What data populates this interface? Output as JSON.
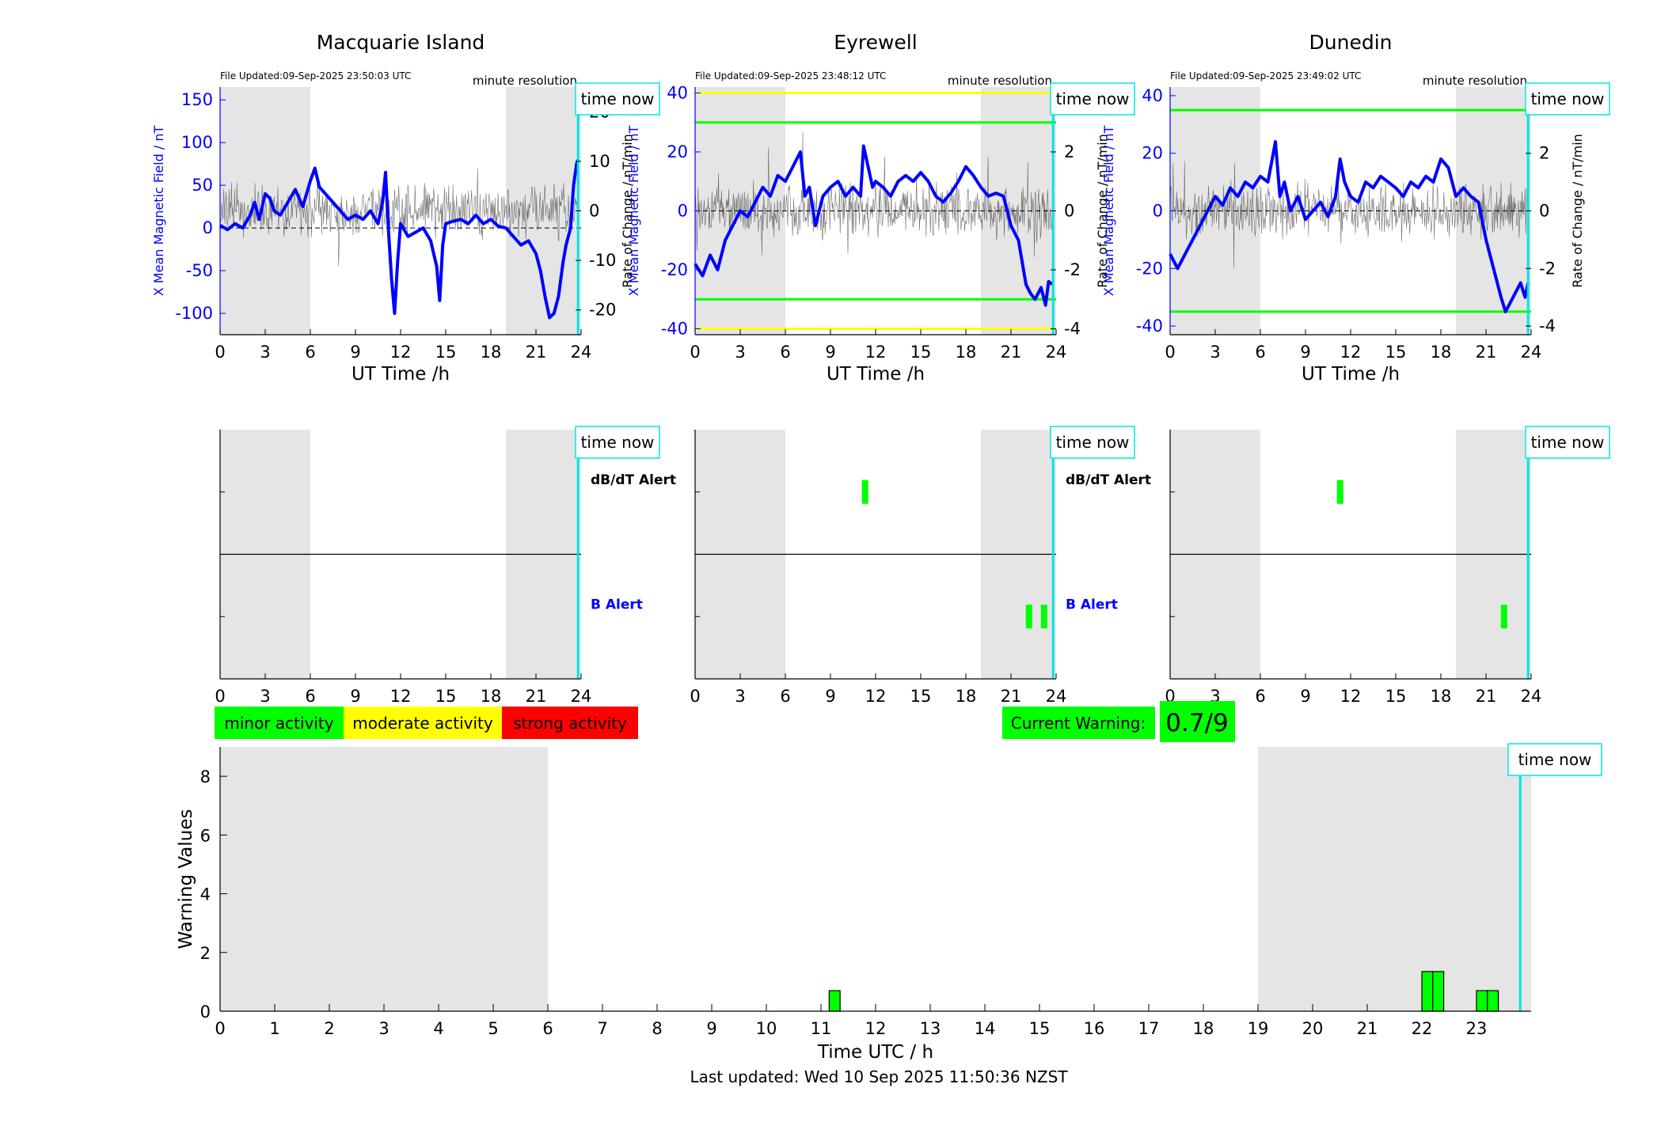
{
  "colors": {
    "night_shade": "#e5e5e5",
    "mean_field": "#0000ff",
    "rate_of_change": "#333333",
    "time_now": "#00e5e5",
    "minor": "#00ff00",
    "moderate": "#ffff00",
    "strong": "#ff0000"
  },
  "labels": {
    "time_now": "time now",
    "minute_resolution": "minute resolution",
    "ut_time": "UT Time /h",
    "x_field": "X Mean Magnetic Field / nT",
    "rate": "Rate of Change / nT/min",
    "dbdt_alert": "dB/dT Alert",
    "b_alert": "B Alert",
    "warning_values": "Warning Values",
    "time_utc": "Time UTC / h",
    "current_warning": "Current Warning:",
    "current_warning_value": "0.7/9",
    "last_updated": "Last updated: Wed 10 Sep 2025 11:50:36 NZST"
  },
  "legend": [
    {
      "label": "minor activity",
      "color": "#00ff00"
    },
    {
      "label": "moderate activity",
      "color": "#ffff00"
    },
    {
      "label": "strong activity",
      "color": "#ff0000"
    }
  ],
  "chart_data": [
    {
      "type": "line",
      "title": "Macquarie Island",
      "file_updated": "File Updated:09-Sep-2025 23:50:03 UTC",
      "xlabel": "UT Time /h",
      "ylabel": "X Mean Magnetic Field / nT",
      "ylabel_right": "Rate of Change / nT/min",
      "xlim": [
        0,
        24
      ],
      "xticks": [
        0,
        3,
        6,
        9,
        12,
        15,
        18,
        21,
        24
      ],
      "ylim": [
        -125,
        165
      ],
      "yticks": [
        -100,
        -50,
        0,
        50,
        100,
        150
      ],
      "ylim_right": [
        -25,
        25
      ],
      "yticks_right": [
        -20,
        -10,
        0,
        10,
        20
      ],
      "night_shade": [
        [
          0,
          6
        ],
        [
          19,
          24
        ]
      ],
      "time_now": 23.8,
      "threshold_lines": [],
      "series": [
        {
          "x": [
            0,
            0.5,
            1,
            1.5,
            2,
            2.3,
            2.6,
            3,
            3.3,
            3.6,
            4,
            4.5,
            5,
            5.5,
            6,
            6.3,
            6.6,
            7,
            7.5,
            8,
            8.5,
            9,
            9.5,
            10,
            10.5,
            10.8,
            11,
            11.2,
            11.4,
            11.6,
            11.8,
            12,
            12.5,
            13,
            13.5,
            14,
            14.4,
            14.6,
            14.8,
            15,
            15.5,
            16,
            16.5,
            17,
            17.5,
            18,
            18.5,
            19,
            19.5,
            20,
            20.5,
            21,
            21.3,
            21.6,
            21.9,
            22.2,
            22.5,
            22.8,
            23,
            23.3,
            23.5,
            23.7,
            23.8
          ],
          "y": [
            3,
            -2,
            5,
            0,
            15,
            30,
            10,
            40,
            35,
            20,
            15,
            30,
            45,
            25,
            55,
            70,
            48,
            40,
            30,
            20,
            10,
            15,
            10,
            20,
            5,
            30,
            65,
            -5,
            -60,
            -100,
            -40,
            5,
            -10,
            -5,
            0,
            -15,
            -45,
            -85,
            -20,
            5,
            8,
            10,
            5,
            15,
            5,
            10,
            2,
            0,
            -10,
            -20,
            -15,
            -30,
            -50,
            -80,
            -105,
            -100,
            -80,
            -40,
            -20,
            0,
            50,
            75,
            80
          ]
        }
      ]
    },
    {
      "type": "line",
      "title": "Eyrewell",
      "file_updated": "File Updated:09-Sep-2025 23:48:12 UTC",
      "xlabel": "UT Time /h",
      "ylabel": "X Mean Magnetic Field / nT",
      "ylabel_right": "Rate of Change / nT/min",
      "xlim": [
        0,
        24
      ],
      "xticks": [
        0,
        3,
        6,
        9,
        12,
        15,
        18,
        21,
        24
      ],
      "ylim": [
        -42,
        42
      ],
      "yticks": [
        -40,
        -20,
        0,
        20,
        40
      ],
      "ylim_right": [
        -4.2,
        4.2
      ],
      "yticks_right": [
        -4,
        -2,
        0,
        2,
        4
      ],
      "night_shade": [
        [
          0,
          6
        ],
        [
          19,
          24
        ]
      ],
      "time_now": 23.8,
      "threshold_lines": [
        {
          "y": 40,
          "color": "#ffff00"
        },
        {
          "y": 30,
          "color": "#00ff00"
        },
        {
          "y": -30,
          "color": "#00ff00"
        },
        {
          "y": -40,
          "color": "#ffff00"
        }
      ],
      "series": [
        {
          "x": [
            0,
            0.5,
            1,
            1.5,
            2,
            2.5,
            3,
            3.5,
            4,
            4.5,
            5,
            5.5,
            6,
            6.5,
            7,
            7.3,
            7.6,
            8,
            8.5,
            9,
            9.5,
            10,
            10.5,
            11,
            11.2,
            11.5,
            11.8,
            12,
            12.5,
            13,
            13.5,
            14,
            14.5,
            15,
            15.5,
            16,
            16.5,
            17,
            17.5,
            18,
            18.5,
            19,
            19.5,
            20,
            20.5,
            21,
            21.5,
            22,
            22.3,
            22.6,
            23,
            23.3,
            23.5,
            23.8
          ],
          "y": [
            -18,
            -22,
            -15,
            -20,
            -10,
            -5,
            0,
            -2,
            3,
            8,
            5,
            12,
            10,
            15,
            20,
            5,
            8,
            -5,
            5,
            8,
            10,
            5,
            8,
            5,
            22,
            15,
            8,
            10,
            8,
            5,
            10,
            12,
            10,
            13,
            10,
            5,
            3,
            6,
            10,
            15,
            12,
            8,
            5,
            6,
            5,
            -5,
            -10,
            -25,
            -28,
            -30,
            -26,
            -32,
            -24,
            -25
          ]
        }
      ]
    },
    {
      "type": "line",
      "title": "Dunedin",
      "file_updated": "File Updated:09-Sep-2025 23:49:02 UTC",
      "xlabel": "UT Time /h",
      "ylabel": "X Mean Magnetic Field / nT",
      "ylabel_right": "Rate of Change / nT/min",
      "xlim": [
        0,
        24
      ],
      "xticks": [
        0,
        3,
        6,
        9,
        12,
        15,
        18,
        21,
        24
      ],
      "ylim": [
        -43,
        43
      ],
      "yticks": [
        -40,
        -20,
        0,
        20,
        40
      ],
      "ylim_right": [
        -4.3,
        4.3
      ],
      "yticks_right": [
        -4,
        -2,
        0,
        2,
        4
      ],
      "night_shade": [
        [
          0,
          6
        ],
        [
          19,
          24
        ]
      ],
      "time_now": 23.8,
      "threshold_lines": [
        {
          "y": 35,
          "color": "#00ff00"
        },
        {
          "y": -35,
          "color": "#00ff00"
        }
      ],
      "series": [
        {
          "x": [
            0,
            0.5,
            1,
            1.5,
            2,
            2.5,
            3,
            3.5,
            4,
            4.5,
            5,
            5.5,
            6,
            6.5,
            7,
            7.3,
            7.6,
            8,
            8.5,
            9,
            9.5,
            10,
            10.5,
            11,
            11.3,
            11.6,
            12,
            12.5,
            13,
            13.5,
            14,
            14.5,
            15,
            15.5,
            16,
            16.5,
            17,
            17.5,
            18,
            18.5,
            19,
            19.5,
            20,
            20.5,
            21,
            21.5,
            22,
            22.3,
            22.6,
            23,
            23.3,
            23.6,
            23.8
          ],
          "y": [
            -15,
            -20,
            -15,
            -10,
            -5,
            0,
            5,
            2,
            8,
            5,
            10,
            8,
            12,
            10,
            24,
            5,
            10,
            0,
            5,
            -3,
            0,
            3,
            -2,
            5,
            18,
            10,
            5,
            3,
            10,
            8,
            12,
            10,
            8,
            5,
            10,
            8,
            12,
            10,
            18,
            15,
            5,
            8,
            5,
            3,
            -10,
            -20,
            -30,
            -35,
            -32,
            -28,
            -25,
            -30,
            -25
          ]
        }
      ]
    },
    {
      "type": "bar",
      "title": "",
      "xlabel": "",
      "ylabel": "",
      "xlim": [
        0,
        24
      ],
      "xticks": [
        0,
        3,
        6,
        9,
        12,
        15,
        18,
        21,
        24
      ],
      "categories": [
        "B Alert",
        "dB/dT Alert"
      ],
      "night_shade": [
        [
          0,
          6
        ],
        [
          19,
          24
        ]
      ],
      "time_now": 23.8,
      "alerts": []
    },
    {
      "type": "bar",
      "title": "",
      "xlabel": "",
      "ylabel": "",
      "xlim": [
        0,
        24
      ],
      "xticks": [
        0,
        3,
        6,
        9,
        12,
        15,
        18,
        21,
        24
      ],
      "categories": [
        "B Alert",
        "dB/dT Alert"
      ],
      "night_shade": [
        [
          0,
          6
        ],
        [
          19,
          24
        ]
      ],
      "time_now": 23.8,
      "alerts": [
        {
          "t": 11.3,
          "level": "dB/dT Alert",
          "color": "#00ff00"
        },
        {
          "t": 22.2,
          "level": "B Alert",
          "color": "#00ff00"
        },
        {
          "t": 23.2,
          "level": "B Alert",
          "color": "#00ff00"
        }
      ]
    },
    {
      "type": "bar",
      "title": "",
      "xlabel": "",
      "ylabel": "",
      "xlim": [
        0,
        24
      ],
      "xticks": [
        0,
        3,
        6,
        9,
        12,
        15,
        18,
        21,
        24
      ],
      "categories": [
        "B Alert",
        "dB/dT Alert"
      ],
      "night_shade": [
        [
          0,
          6
        ],
        [
          19,
          24
        ]
      ],
      "time_now": 23.8,
      "alerts": [
        {
          "t": 11.3,
          "level": "dB/dT Alert",
          "color": "#00ff00"
        },
        {
          "t": 22.2,
          "level": "B Alert",
          "color": "#00ff00"
        }
      ]
    },
    {
      "type": "bar",
      "title": "",
      "xlabel": "Time UTC / h",
      "ylabel": "Warning Values",
      "xlim": [
        0,
        24
      ],
      "xticks": [
        0,
        1,
        2,
        3,
        4,
        5,
        6,
        7,
        8,
        9,
        10,
        11,
        12,
        13,
        14,
        15,
        16,
        17,
        18,
        19,
        20,
        21,
        22,
        23
      ],
      "ylim": [
        0,
        9
      ],
      "yticks": [
        0,
        2,
        4,
        6,
        8
      ],
      "night_shade": [
        [
          0,
          6
        ],
        [
          19,
          24
        ]
      ],
      "time_now": 23.8,
      "bars": [
        {
          "x": 11.25,
          "value": 0.7
        },
        {
          "x": 22.1,
          "value": 1.35
        },
        {
          "x": 22.3,
          "value": 1.35
        },
        {
          "x": 23.1,
          "value": 0.7
        },
        {
          "x": 23.3,
          "value": 0.7
        }
      ]
    }
  ]
}
